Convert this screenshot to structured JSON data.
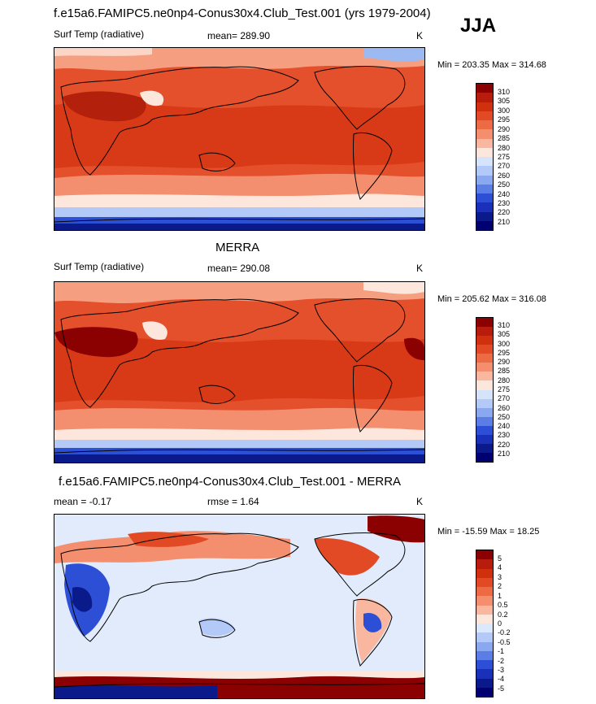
{
  "season": "JJA",
  "panels": [
    {
      "title": "f.e15a6.FAMIPC5.ne0np4-Conus30x4.Club_Test.001 (yrs 1979-2004)",
      "left_label": "Surf Temp (radiative)",
      "center_label": "mean= 289.90",
      "units": "K",
      "minmax": "Min = 203.35 Max = 314.68",
      "colorbar_labels": [
        "310",
        "305",
        "300",
        "295",
        "290",
        "285",
        "280",
        "275",
        "270",
        "260",
        "250",
        "240",
        "230",
        "220",
        "210"
      ]
    },
    {
      "title": "MERRA",
      "left_label": "Surf Temp (radiative)",
      "center_label": "mean= 290.08",
      "units": "K",
      "minmax": "Min = 205.62 Max = 316.08",
      "colorbar_labels": [
        "310",
        "305",
        "300",
        "295",
        "290",
        "285",
        "280",
        "275",
        "270",
        "260",
        "250",
        "240",
        "230",
        "220",
        "210"
      ]
    },
    {
      "title": "f.e15a6.FAMIPC5.ne0np4-Conus30x4.Club_Test.001 - MERRA",
      "left_label": "mean =  -0.17",
      "center_label": "rmse =   1.64",
      "units": "K",
      "minmax": "Min = -15.59 Max =  18.25",
      "colorbar_labels": [
        "5",
        "4",
        "3",
        "2",
        "1",
        "0.5",
        "0.2",
        "0",
        "-0.2",
        "-0.5",
        "-1",
        "-2",
        "-3",
        "-4",
        "-5"
      ]
    }
  ],
  "colors": {
    "abs_scale": [
      "#8b0000",
      "#b71c0c",
      "#d1300f",
      "#e24a25",
      "#ec6a44",
      "#f38e6e",
      "#f9b7a0",
      "#fde7dc",
      "#d5e3fb",
      "#b3c9f7",
      "#8aa8f0",
      "#5b7de6",
      "#2d4fd6",
      "#1a30b8",
      "#0a1a8a",
      "#000070"
    ],
    "diff_scale": [
      "#8b0000",
      "#b71c0c",
      "#d1300f",
      "#e24a25",
      "#ec6a44",
      "#f38e6e",
      "#f9b7a0",
      "#fde7dc",
      "#dce8fb",
      "#b3c9f7",
      "#8aa8f0",
      "#5b7de6",
      "#2d4fd6",
      "#1a30b8",
      "#0a1a8a",
      "#000070"
    ]
  }
}
